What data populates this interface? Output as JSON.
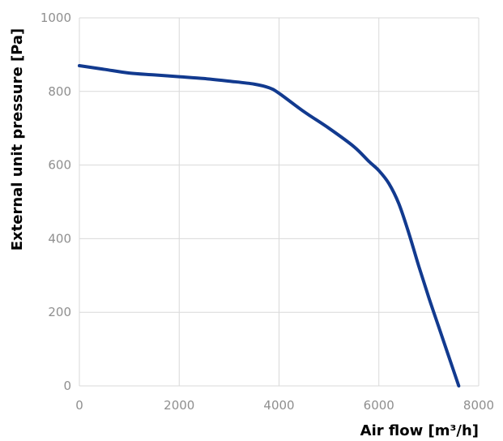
{
  "chart_data": {
    "type": "line",
    "title": "",
    "xlabel": "Air flow [m³/h]",
    "ylabel": "External unit pressure [Pa]",
    "xlim": [
      0,
      8000
    ],
    "ylim": [
      0,
      1000
    ],
    "x_ticks": [
      0,
      2000,
      4000,
      6000,
      8000
    ],
    "y_ticks": [
      0,
      200,
      400,
      600,
      800,
      1000
    ],
    "grid": true,
    "legend": "none",
    "colors": {
      "line": "#123a8f",
      "grid": "#d9d9d9",
      "tick_label": "#8f8f8f",
      "axis_title": "#000000"
    },
    "series": [
      {
        "x": [
          0,
          500,
          1000,
          1500,
          2000,
          2500,
          3000,
          3500,
          3800,
          4000,
          4500,
          5000,
          5500,
          5800,
          6000,
          6200,
          6400,
          6600,
          6800,
          7000,
          7200,
          7400,
          7600
        ],
        "y": [
          870,
          860,
          850,
          845,
          840,
          835,
          828,
          820,
          810,
          795,
          745,
          700,
          650,
          610,
          585,
          550,
          495,
          415,
          325,
          240,
          160,
          80,
          0
        ]
      }
    ]
  }
}
